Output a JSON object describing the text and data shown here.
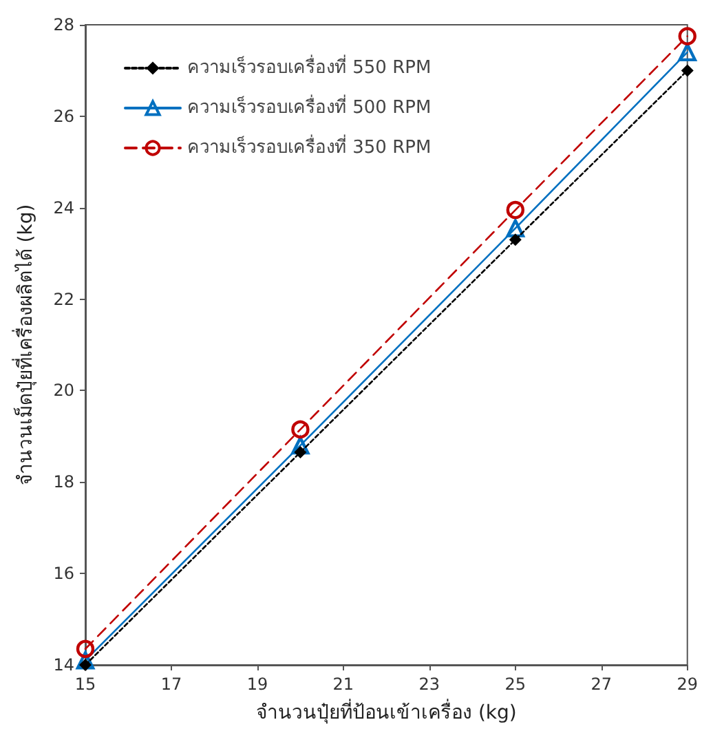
{
  "chart_data": {
    "type": "line",
    "xlabel": "จำนวนปุ๋ยที่ป้อนเข้าเครื่อง (kg)",
    "ylabel": "จำนวนเม็ดปุ๋ยที่เครื่องผลิตได้ (kg)",
    "x": [
      15,
      20,
      25,
      29
    ],
    "series": [
      {
        "name": "ความเร็วรอบเครื่องที่ 550 RPM",
        "color": "#000000",
        "marker": "diamond",
        "line_style": "dotted",
        "values": [
          14.0,
          18.65,
          23.3,
          27.0
        ]
      },
      {
        "name": "ความเร็วรอบเครื่องที่ 500 RPM",
        "color": "#0070c0",
        "marker": "triangle",
        "line_style": "solid",
        "values": [
          14.1,
          18.8,
          23.55,
          27.4
        ]
      },
      {
        "name": "ความเร็วรอบเครื่องที่ 350 RPM",
        "color": "#c00000",
        "marker": "circle",
        "line_style": "dashed",
        "values": [
          14.35,
          19.15,
          23.95,
          27.75
        ]
      }
    ],
    "xlim": [
      15,
      29
    ],
    "xticks": [
      15,
      17,
      19,
      21,
      23,
      25,
      27,
      29
    ],
    "ylim": [
      14,
      28
    ],
    "yticks": [
      14,
      16,
      18,
      20,
      22,
      24,
      26,
      28
    ],
    "grid": false,
    "legend": "top left"
  }
}
